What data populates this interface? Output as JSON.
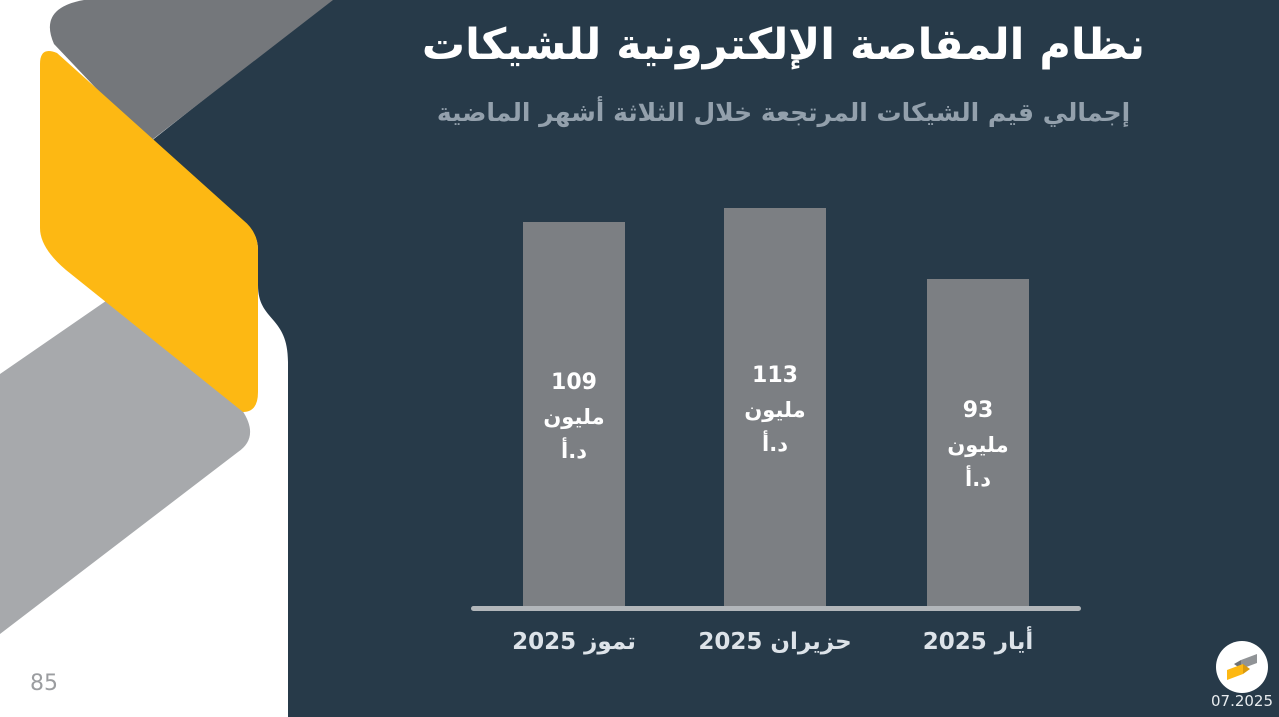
{
  "slide": {
    "title": "نظام المقاصة الإلكترونية للشيكات",
    "subtitle": "إجمالي قيم الشيكات المرتجعة خلال الثلاثة أشهر الماضية"
  },
  "chart_data": {
    "type": "bar",
    "title": "إجمالي قيم الشيكات المرتجعة خلال الثلاثة أشهر الماضية",
    "direction": "rtl",
    "categories": [
      "تموز 2025",
      "حزيران 2025",
      "أيار 2025"
    ],
    "values": [
      109,
      113,
      93
    ],
    "unit_lines": [
      "مليون",
      "د.أ"
    ],
    "bar_labels": [
      "109 مليون د.أ",
      "113 مليون د.أ",
      "93 مليون د.أ"
    ],
    "ylim": [
      0,
      120
    ],
    "grid": false,
    "legend": false,
    "bar_color": "#7c7f83",
    "axis_line_color": "#b2b6ba",
    "value_label_color": "#ffffff"
  },
  "footer": {
    "page_number": "85",
    "date": "07.2025"
  },
  "colors": {
    "background_navy": "#273a49",
    "panel_white": "#ffffff",
    "accent_yellow": "#fdb813",
    "ribbon_dark_gray": "#74777b",
    "ribbon_light_gray": "#a7a9ac",
    "subtitle_gray": "#93a0ac"
  }
}
